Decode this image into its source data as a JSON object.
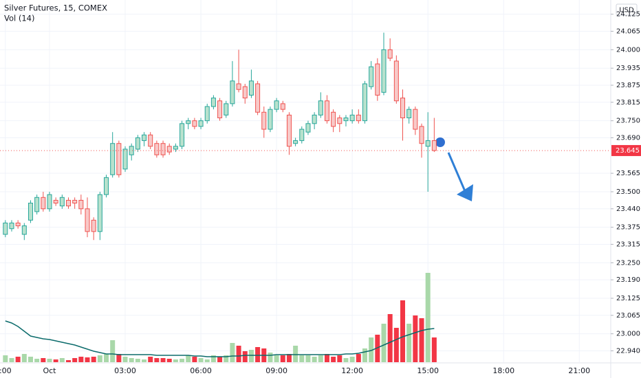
{
  "chart_data": {
    "type": "candlestick",
    "title": "Silver Futures, 15, COMEX",
    "currency": "USD",
    "categories": [
      ":00",
      null,
      null,
      null,
      null,
      null,
      null,
      "Oct",
      null,
      null,
      null,
      null,
      null,
      null,
      null,
      null,
      null,
      null,
      null,
      "03:00",
      null,
      null,
      null,
      null,
      null,
      null,
      null,
      null,
      null,
      null,
      null,
      "06:00",
      null,
      null,
      null,
      null,
      null,
      null,
      null,
      null,
      null,
      null,
      null,
      "09:00",
      null,
      null,
      null,
      null,
      null,
      null,
      null,
      null,
      null,
      null,
      null,
      "12:00",
      null,
      null,
      null,
      null,
      null,
      null,
      null,
      null,
      null,
      null,
      null,
      "15:00",
      null,
      null,
      null,
      null,
      null,
      null,
      null,
      null,
      null,
      null,
      null,
      "18:00",
      null,
      null,
      null,
      null,
      null,
      null,
      null,
      null,
      null,
      null,
      null,
      "21:00"
    ],
    "open": [
      23.35,
      23.37,
      23.39,
      23.35,
      23.4,
      23.43,
      23.48,
      23.44,
      23.47,
      23.45,
      23.47,
      23.47,
      23.47,
      23.44,
      23.4,
      23.36,
      23.49,
      23.56,
      23.67,
      23.58,
      23.63,
      23.65,
      23.68,
      23.7,
      23.67,
      23.67,
      23.66,
      23.65,
      23.66,
      23.74,
      23.75,
      23.73,
      23.75,
      23.8,
      23.82,
      23.77,
      23.81,
      23.88,
      23.87,
      23.84,
      23.88,
      23.78,
      23.72,
      23.79,
      23.81,
      23.77,
      23.67,
      23.68,
      23.71,
      23.74,
      23.77,
      23.82,
      23.78,
      23.76,
      23.75,
      23.75,
      23.77,
      23.75,
      23.87,
      23.95,
      23.85,
      24.0,
      23.96,
      23.83,
      23.76,
      23.79,
      23.73,
      23.66,
      23.68,
      null,
      null,
      null,
      null,
      null,
      null,
      null,
      null,
      null,
      null,
      null,
      null,
      null,
      null,
      null,
      null,
      null,
      null,
      null,
      null,
      null,
      null,
      null
    ],
    "high": [
      23.4,
      23.4,
      23.4,
      23.39,
      23.47,
      23.49,
      23.5,
      23.5,
      23.48,
      23.49,
      23.48,
      23.48,
      23.49,
      23.48,
      23.41,
      23.5,
      23.56,
      23.71,
      23.68,
      23.66,
      23.67,
      23.7,
      23.71,
      23.71,
      23.68,
      23.68,
      23.67,
      23.67,
      23.75,
      23.76,
      23.76,
      23.76,
      23.81,
      23.84,
      23.83,
      23.82,
      23.96,
      24.0,
      23.88,
      23.93,
      23.89,
      23.8,
      23.8,
      23.83,
      23.82,
      23.78,
      23.69,
      23.73,
      23.75,
      23.78,
      23.85,
      23.84,
      23.79,
      23.77,
      23.77,
      23.79,
      23.79,
      23.89,
      23.96,
      23.97,
      24.06,
      24.04,
      23.98,
      23.86,
      23.8,
      23.8,
      23.74,
      23.78,
      23.76,
      null,
      null,
      null,
      null,
      null,
      null,
      null,
      null,
      null,
      null,
      null,
      null,
      null,
      null,
      null,
      null,
      null,
      null,
      null,
      null,
      null,
      null,
      null
    ],
    "low": [
      23.34,
      23.36,
      23.37,
      23.33,
      23.39,
      23.42,
      23.43,
      23.43,
      23.45,
      23.44,
      23.44,
      23.44,
      23.42,
      23.34,
      23.33,
      23.33,
      23.48,
      23.55,
      23.55,
      23.57,
      23.61,
      23.64,
      23.66,
      23.65,
      23.62,
      23.62,
      23.63,
      23.64,
      23.65,
      23.72,
      23.72,
      23.72,
      23.74,
      23.79,
      23.75,
      23.76,
      23.8,
      23.85,
      23.81,
      23.83,
      23.77,
      23.69,
      23.71,
      23.78,
      23.78,
      23.63,
      23.66,
      23.67,
      23.7,
      23.72,
      23.76,
      23.74,
      23.71,
      23.71,
      23.73,
      23.74,
      23.74,
      23.74,
      23.86,
      23.82,
      23.84,
      23.96,
      23.81,
      23.68,
      23.74,
      23.7,
      23.62,
      23.5,
      23.64,
      null,
      null,
      null,
      null,
      null,
      null,
      null,
      null,
      null,
      null,
      null,
      null,
      null,
      null,
      null,
      null,
      null,
      null,
      null,
      null,
      null,
      null,
      null
    ],
    "close": [
      23.39,
      23.39,
      23.38,
      23.38,
      23.46,
      23.48,
      23.44,
      23.49,
      23.46,
      23.48,
      23.45,
      23.46,
      23.44,
      23.36,
      23.36,
      23.49,
      23.55,
      23.67,
      23.56,
      23.65,
      23.66,
      23.69,
      23.7,
      23.66,
      23.63,
      23.63,
      23.64,
      23.66,
      23.74,
      23.75,
      23.73,
      23.75,
      23.8,
      23.83,
      23.76,
      23.81,
      23.89,
      23.86,
      23.83,
      23.89,
      23.78,
      23.72,
      23.79,
      23.82,
      23.79,
      23.66,
      23.68,
      23.72,
      23.74,
      23.77,
      23.82,
      23.75,
      23.73,
      23.74,
      23.76,
      23.77,
      23.75,
      23.88,
      23.94,
      23.84,
      24.0,
      23.97,
      23.82,
      23.76,
      23.79,
      23.72,
      23.67,
      23.68,
      23.645,
      null,
      null,
      null,
      null,
      null,
      null,
      null,
      null,
      null,
      null,
      null,
      null,
      null,
      null,
      null,
      null,
      null,
      null,
      null,
      null,
      null,
      null,
      null
    ],
    "up_color": "#26a69a",
    "up_fill": "#b7e1cd",
    "down_color": "#ef5350",
    "down_fill": "#f8c9c8",
    "ylim": [
      22.9,
      24.175
    ],
    "yticks": [
      24.125,
      24.065,
      {
        "value": 24.0,
        "label": "24.000"
      },
      23.935,
      23.875,
      23.815,
      {
        "value": 23.75,
        "label": "23.750"
      },
      {
        "value": 23.69,
        "label": "23.690"
      },
      23.565,
      {
        "value": 23.5,
        "label": "23.500"
      },
      {
        "value": 23.44,
        "label": "23.440"
      },
      23.375,
      23.315,
      {
        "value": 23.25,
        "label": "23.250"
      },
      {
        "value": 23.19,
        "label": "23.190"
      },
      23.125,
      23.065,
      {
        "value": 23.0,
        "label": "23.000"
      },
      {
        "value": 22.94,
        "label": "22.940"
      }
    ],
    "grid": true,
    "volume": {
      "name": "Vol (14)",
      "up_color": "#a9d8a9",
      "down_color": "#f23645",
      "ma_color": "#0b6b6b",
      "values": [
        10,
        6,
        8,
        12,
        8,
        5,
        6,
        5,
        4,
        6,
        3,
        6,
        8,
        7,
        8,
        10,
        12,
        32,
        12,
        8,
        6,
        5,
        4,
        8,
        6,
        6,
        5,
        4,
        5,
        10,
        8,
        6,
        4,
        10,
        8,
        10,
        28,
        24,
        16,
        18,
        22,
        20,
        14,
        10,
        10,
        12,
        24,
        10,
        10,
        8,
        10,
        12,
        8,
        10,
        6,
        8,
        12,
        20,
        36,
        40,
        56,
        70,
        50,
        90,
        56,
        68,
        64,
        130,
        36,
        null,
        null,
        null,
        null,
        null,
        null,
        null,
        null,
        null,
        null,
        null,
        null,
        null,
        null,
        null,
        null,
        null,
        null,
        null,
        null,
        null,
        null,
        null
      ],
      "ma": [
        60,
        57,
        52,
        45,
        38,
        36,
        34,
        33,
        31,
        29,
        27,
        25,
        22,
        19,
        16,
        14,
        12,
        12,
        11,
        11,
        11,
        11,
        11,
        11,
        10,
        10,
        10,
        10,
        10,
        10,
        9,
        9,
        8,
        8,
        8,
        8,
        9,
        9,
        10,
        10,
        10,
        10,
        10,
        11,
        11,
        11,
        11,
        11,
        11,
        11,
        11,
        11,
        11,
        11,
        12,
        12,
        13,
        15,
        17,
        21,
        25,
        29,
        33,
        37,
        40,
        43,
        46,
        48,
        49,
        null,
        null,
        null,
        null,
        null,
        null,
        null,
        null,
        null,
        null,
        null,
        null,
        null,
        null,
        null,
        null,
        null,
        null,
        null,
        null,
        null,
        null,
        null
      ]
    }
  }
}
